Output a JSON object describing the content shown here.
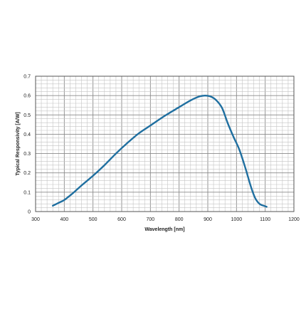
{
  "chart_data": {
    "type": "line",
    "xlabel": "Wavelength [nm]",
    "ylabel": "Typical Responsivity [A/W]",
    "xlim": [
      300,
      1200
    ],
    "ylim": [
      0,
      0.7
    ],
    "x_ticks": [
      300,
      400,
      500,
      600,
      700,
      800,
      900,
      1000,
      1100,
      1200
    ],
    "y_ticks": [
      0,
      0.1,
      0.2,
      0.3,
      0.4,
      0.5,
      0.6,
      0.7
    ],
    "x_tick_labels": [
      "300",
      "400",
      "500",
      "600",
      "700",
      "800",
      "900",
      "1000",
      "1100",
      "1200"
    ],
    "y_tick_labels": [
      "0",
      "0.1",
      "0.2",
      "0.3",
      "0.4",
      "0.5",
      "0.6",
      "0.7"
    ],
    "grid": true,
    "minor_grid_divisions": 5,
    "line_color": "#1f6fa0",
    "series": [
      {
        "x": [
          360,
          380,
          400,
          430,
          460,
          500,
          540,
          580,
          620,
          660,
          700,
          750,
          800,
          840,
          870,
          890,
          910,
          930,
          950,
          970,
          990,
          1010,
          1030,
          1050,
          1065,
          1080,
          1095,
          1105
        ],
        "y": [
          0.03,
          0.045,
          0.06,
          0.095,
          0.135,
          0.185,
          0.24,
          0.3,
          0.355,
          0.405,
          0.445,
          0.495,
          0.54,
          0.575,
          0.595,
          0.6,
          0.595,
          0.575,
          0.535,
          0.455,
          0.385,
          0.32,
          0.23,
          0.13,
          0.07,
          0.04,
          0.03,
          0.025
        ]
      }
    ]
  }
}
